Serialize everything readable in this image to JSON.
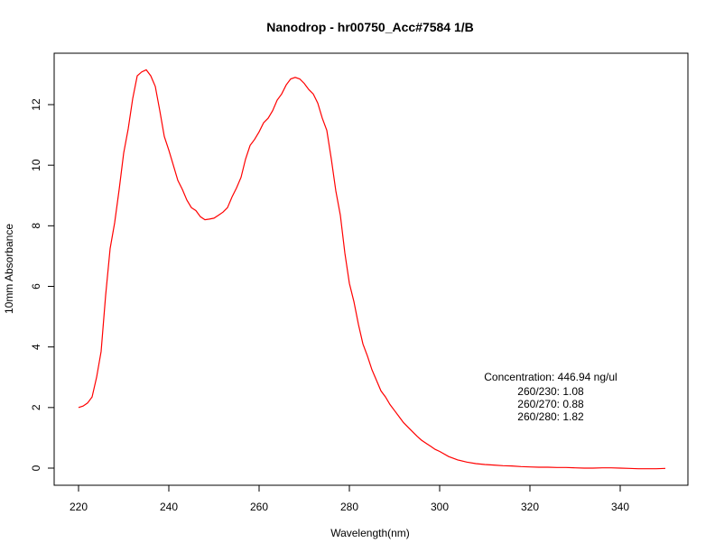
{
  "chart_data": {
    "type": "line",
    "title": "Nanodrop - hr00750_Acc#7584 1/B",
    "xlabel": "Wavelength(nm)",
    "ylabel": "10mm Absorbance",
    "xlim": [
      220,
      350
    ],
    "ylim": [
      -0.5,
      13.6
    ],
    "xticks": [
      220,
      240,
      260,
      280,
      300,
      320,
      340
    ],
    "yticks": [
      0,
      2,
      4,
      6,
      8,
      10,
      12
    ],
    "grid": false,
    "line_color": "#ff0000",
    "series": [
      {
        "x": [
          220,
          221,
          222,
          223,
          224,
          225,
          226,
          227,
          228,
          229,
          230,
          231,
          232,
          233,
          234,
          235,
          236,
          237,
          238,
          239,
          240,
          241,
          242,
          243,
          244,
          245,
          246,
          247,
          248,
          249,
          250,
          251,
          252,
          253,
          254,
          255,
          256,
          257,
          258,
          259,
          260,
          261,
          262,
          263,
          264,
          265,
          266,
          267,
          268,
          269,
          270,
          271,
          272,
          273,
          274,
          275,
          276,
          277,
          278,
          279,
          280,
          281,
          282,
          283,
          284,
          285,
          286,
          287,
          288,
          289,
          290,
          291,
          292,
          293,
          294,
          295,
          296,
          297,
          298,
          299,
          300,
          302,
          304,
          306,
          308,
          310,
          312,
          314,
          316,
          318,
          320,
          322,
          324,
          326,
          328,
          330,
          332,
          334,
          336,
          338,
          340,
          342,
          344,
          346,
          348,
          350
        ],
        "y": [
          2.0,
          2.05,
          2.15,
          2.35,
          3.0,
          3.85,
          5.7,
          7.25,
          8.1,
          9.2,
          10.4,
          11.2,
          12.2,
          12.95,
          13.08,
          13.15,
          12.95,
          12.6,
          11.8,
          10.95,
          10.5,
          10.0,
          9.5,
          9.2,
          8.85,
          8.6,
          8.5,
          8.3,
          8.2,
          8.22,
          8.25,
          8.35,
          8.45,
          8.6,
          8.95,
          9.25,
          9.6,
          10.2,
          10.65,
          10.85,
          11.1,
          11.4,
          11.55,
          11.8,
          12.15,
          12.35,
          12.65,
          12.85,
          12.9,
          12.85,
          12.7,
          12.5,
          12.35,
          12.05,
          11.55,
          11.15,
          10.2,
          9.15,
          8.35,
          7.1,
          6.1,
          5.5,
          4.75,
          4.1,
          3.7,
          3.25,
          2.9,
          2.55,
          2.35,
          2.1,
          1.9,
          1.7,
          1.5,
          1.35,
          1.2,
          1.05,
          0.92,
          0.82,
          0.72,
          0.62,
          0.55,
          0.38,
          0.27,
          0.2,
          0.15,
          0.12,
          0.1,
          0.08,
          0.07,
          0.05,
          0.04,
          0.03,
          0.03,
          0.02,
          0.02,
          0.01,
          0.0,
          0.0,
          0.01,
          0.01,
          0.0,
          -0.01,
          -0.02,
          -0.02,
          -0.02,
          -0.01
        ]
      }
    ],
    "annotations": {
      "concentration": "Concentration: 446.94 ng/ul",
      "ratio_230": "260/230: 1.08",
      "ratio_270": "260/270: 0.88",
      "ratio_280": "260/280: 1.82"
    }
  }
}
